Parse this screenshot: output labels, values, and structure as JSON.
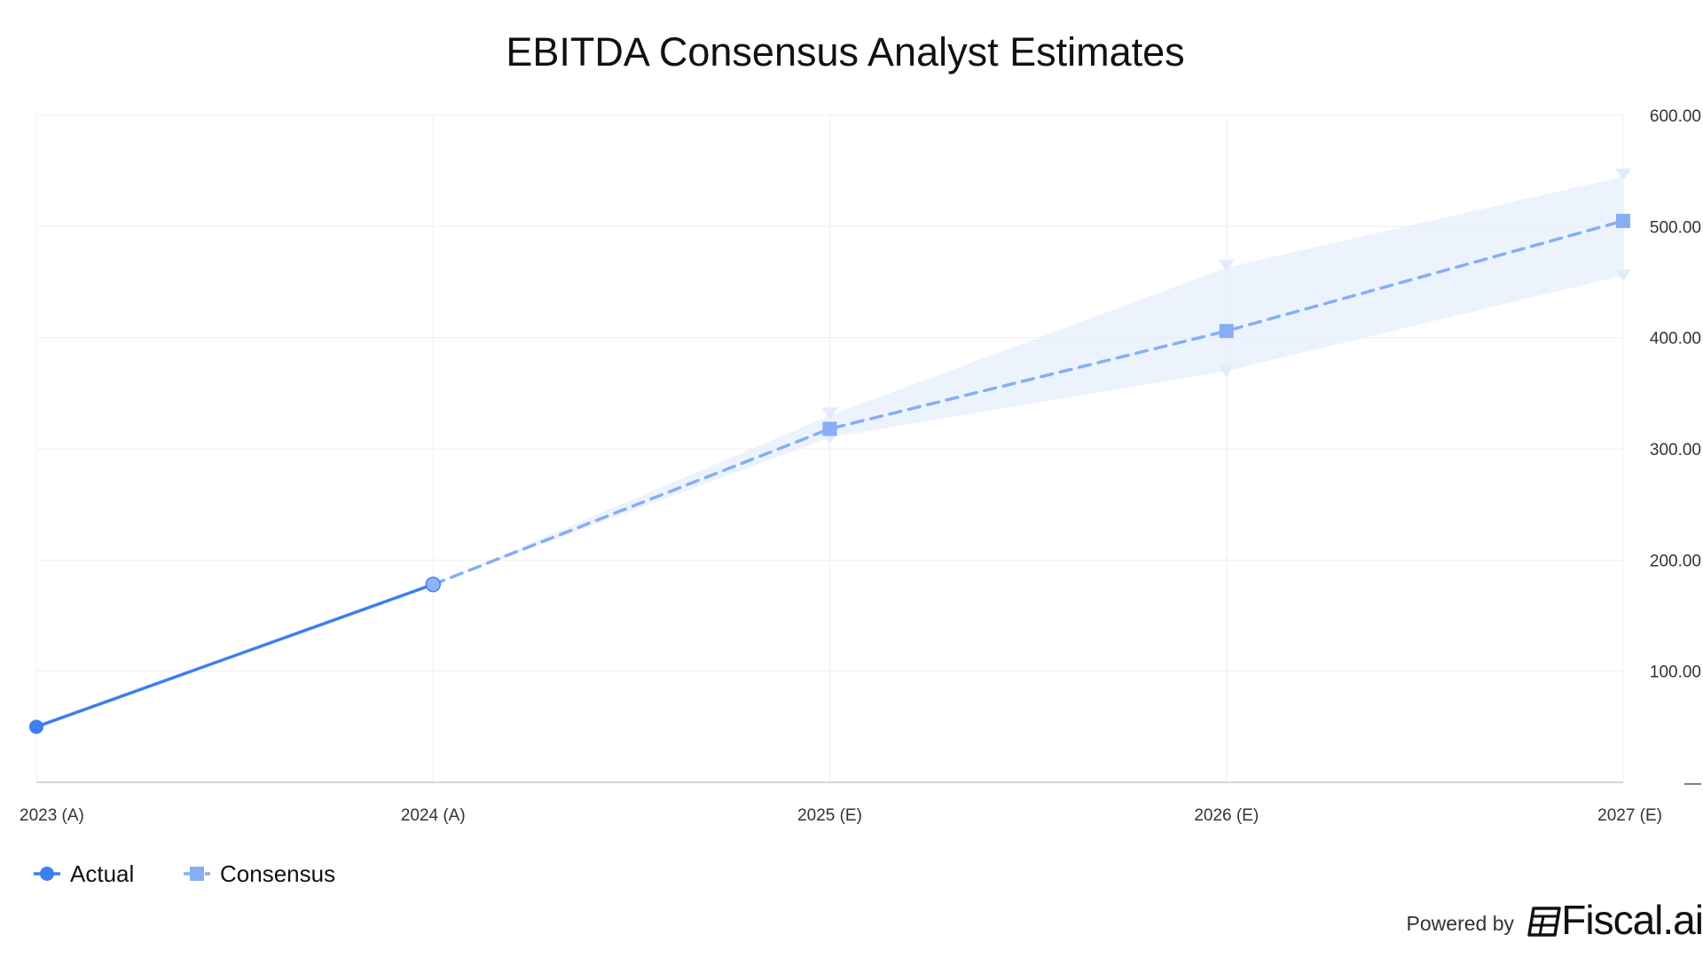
{
  "chart_data": {
    "type": "line",
    "title": "EBITDA Consensus Analyst Estimates",
    "categories": [
      "2023 (A)",
      "2024 (A)",
      "2025 (E)",
      "2026 (E)",
      "2027 (E)"
    ],
    "y_ticks": [
      {
        "value": 0,
        "label": "—"
      },
      {
        "value": 100,
        "label": "100.00"
      },
      {
        "value": 200,
        "label": "200.00"
      },
      {
        "value": 300,
        "label": "300.00"
      },
      {
        "value": 400,
        "label": "400.00"
      },
      {
        "value": 500,
        "label": "500.00"
      },
      {
        "value": 600,
        "label": "600.00"
      }
    ],
    "ylim": [
      0,
      600
    ],
    "y_axis_side": "right",
    "grid": true,
    "legend_position": "bottom-left",
    "series": [
      {
        "name": "Actual",
        "marker": "circle",
        "line_style": "solid",
        "color": "#3b7ff0",
        "values": [
          50,
          178,
          null,
          null,
          null
        ]
      },
      {
        "name": "Consensus",
        "marker": "square",
        "line_style": "dashed",
        "color": "#86aef5",
        "values": [
          null,
          178,
          318,
          406,
          505
        ]
      }
    ],
    "estimate_range": {
      "color": "#dfe9fc",
      "high": [
        null,
        178,
        330,
        463,
        545
      ],
      "low": [
        null,
        178,
        310,
        370,
        456
      ]
    }
  },
  "footer": {
    "powered_by": "Powered by",
    "brand": "Fiscal.ai"
  }
}
